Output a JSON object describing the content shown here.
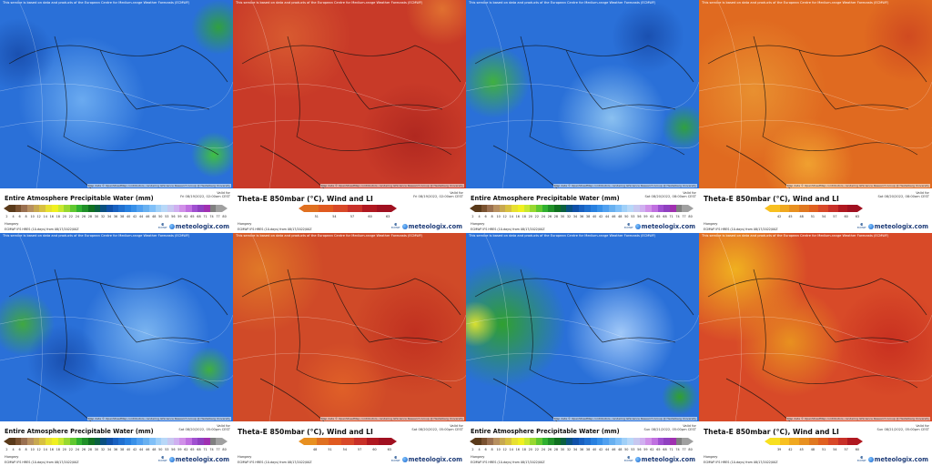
{
  "common": {
    "disclaimer": "This service is based on data and products of the European Centre for Medium-range Weather Forecasts (ECMWF)",
    "attribution": "Map data © OpenStreetMap contributors, rendering GIScience Research Group @ Heidelberg University",
    "valid_label": "Valid for",
    "region": "Hungary",
    "model": "ECMWF IFS HRES (10-days) from 08/17/2022/00Z",
    "ecmwf_logo": "ECMWF",
    "brand": "meteologix.com"
  },
  "scales": {
    "pw": {
      "ticks": [
        "2",
        "4",
        "6",
        "8",
        "10",
        "12",
        "14",
        "16",
        "18",
        "20",
        "22",
        "24",
        "26",
        "28",
        "30",
        "32",
        "34",
        "36",
        "38",
        "40",
        "42",
        "44",
        "46",
        "48",
        "50",
        "53",
        "56",
        "59",
        "62",
        "65",
        "68",
        "71",
        "74",
        "77",
        "80"
      ],
      "colors": [
        "#5a3a1a",
        "#7a5230",
        "#9a7050",
        "#b89060",
        "#c8a850",
        "#d8c040",
        "#e8e030",
        "#f0f020",
        "#c8e830",
        "#98d830",
        "#60c830",
        "#30b030",
        "#209028",
        "#107020",
        "#0a6040",
        "#0a5080",
        "#1050a8",
        "#1860c0",
        "#2070d0",
        "#2880e0",
        "#3890e8",
        "#50a0f0",
        "#68b0f0",
        "#80c0f8",
        "#a0d0f8",
        "#b8d8f8",
        "#c8c8f0",
        "#d0b0f0",
        "#d090e8",
        "#c070e0",
        "#a050d0",
        "#9040c0",
        "#a030b0",
        "#808080",
        "#a0a0a0"
      ]
    }
  },
  "panels": [
    {
      "type": "pw",
      "title": "Entire Atmosphere Precipitable Water (mm)",
      "valid": "Fri 08/19/2022, 02:00am CEST"
    },
    {
      "type": "theta",
      "title": "Theta-E 850mbar (°C), Wind and LI",
      "valid": "Fri 08/19/2022, 02:00am CEST",
      "ticks": [
        "51",
        "54",
        "57",
        "60",
        "63"
      ],
      "colors": [
        "#e07020",
        "#e05a20",
        "#d84828",
        "#c83028",
        "#b01820",
        "#a01020"
      ]
    },
    {
      "type": "pw",
      "title": "Entire Atmosphere Precipitable Water (mm)",
      "valid": "Sat 08/20/2022, 08:00am CEST"
    },
    {
      "type": "theta",
      "title": "Theta-E 850mbar (°C), Wind and LI",
      "valid": "Sat 08/20/2022, 08:00am CEST",
      "ticks": [
        "42",
        "45",
        "48",
        "51",
        "54",
        "57",
        "60",
        "63"
      ],
      "colors": [
        "#f8c020",
        "#f0a820",
        "#e89020",
        "#e07820",
        "#e06020",
        "#d84828",
        "#c83028",
        "#b01820",
        "#a01020"
      ]
    },
    {
      "type": "pw",
      "title": "Entire Atmosphere Precipitable Water (mm)",
      "valid": "Sat 08/20/2022, 05:00pm CEST"
    },
    {
      "type": "theta",
      "title": "Theta-E 850mbar (°C), Wind and LI",
      "valid": "Sat 08/20/2022, 05:00pm CEST",
      "ticks": [
        "48",
        "51",
        "54",
        "57",
        "60",
        "63"
      ],
      "colors": [
        "#e89020",
        "#e07020",
        "#e05a20",
        "#d84828",
        "#c83028",
        "#b01820",
        "#a01020"
      ]
    },
    {
      "type": "pw",
      "title": "Entire Atmosphere Precipitable Water (mm)",
      "valid": "Sun 08/21/2022, 05:00pm CEST"
    },
    {
      "type": "theta",
      "title": "Theta-E 850mbar (°C), Wind and LI",
      "valid": "Sun 08/21/2022, 05:00pm CEST",
      "ticks": [
        "39",
        "42",
        "45",
        "48",
        "51",
        "54",
        "57",
        "60"
      ],
      "colors": [
        "#f8e020",
        "#f8c020",
        "#f0a820",
        "#e89020",
        "#e07820",
        "#e06020",
        "#d84828",
        "#c83028",
        "#b01820"
      ]
    }
  ]
}
